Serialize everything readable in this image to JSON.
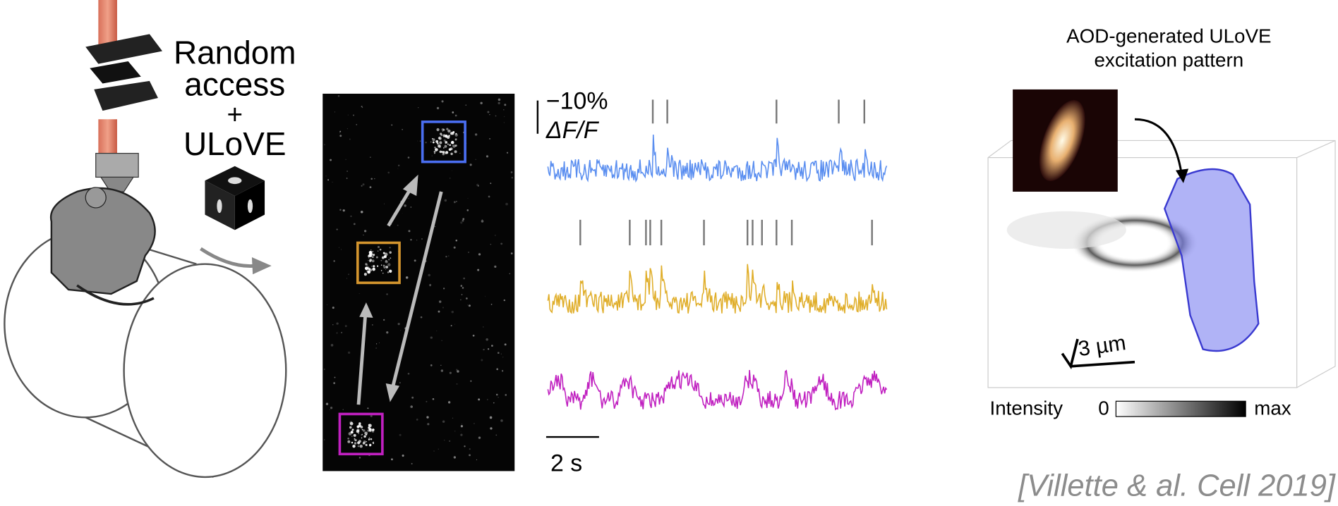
{
  "panel_a": {
    "label_lines": [
      "Random",
      "access",
      "+",
      "ULoVE"
    ]
  },
  "panel_b": {
    "dff_scale": "−10%",
    "dff_label": "ΔF/F",
    "time_scale": "2 s"
  },
  "panel_c": {
    "title_lines": [
      "AOD-generated ULoVE",
      "excitation pattern"
    ],
    "size_scale": "3 µm",
    "colorbar": {
      "label": "Intensity",
      "min": "0",
      "max": "max"
    }
  },
  "citation": "[Villette & al. Cell 2019]"
}
